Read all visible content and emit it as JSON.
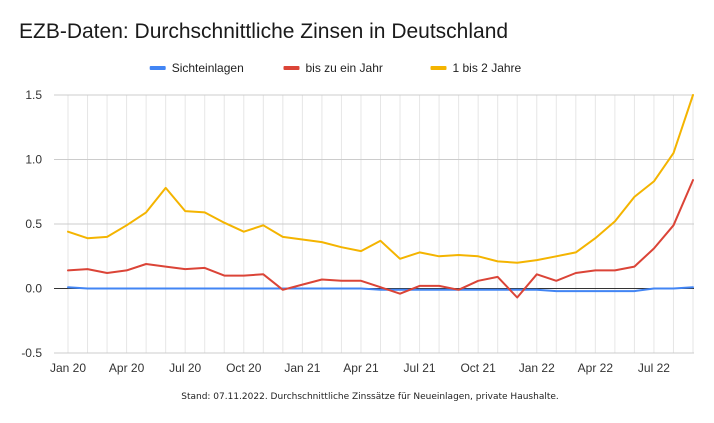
{
  "chart_data": {
    "type": "line",
    "title": "EZB-Daten: Durchschnittliche Zinsen in Deutschland",
    "footnote": "Stand: 07.11.2022. Durchschnittliche Zinssätze für Neueinlagen, private Haushalte.",
    "xlabel": "",
    "ylabel": "",
    "ylim": [
      -0.5,
      1.5
    ],
    "yticks": [
      "1.5",
      "1.0",
      "0.5",
      "0.0",
      "-0.5"
    ],
    "ytick_values": [
      1.5,
      1.0,
      0.5,
      0.0,
      -0.5
    ],
    "xtick_labels": [
      "Jan 20",
      "Apr 20",
      "Jul 20",
      "Oct 20",
      "Jan 21",
      "Apr 21",
      "Jul 21",
      "Oct 21",
      "Jan 22",
      "Apr 22",
      "Jul 22"
    ],
    "xtick_indices": [
      0,
      3,
      6,
      9,
      12,
      15,
      18,
      21,
      24,
      27,
      30
    ],
    "grid": true,
    "legend_position": "top-center",
    "x": [
      "Jan 20",
      "Feb 20",
      "Mar 20",
      "Apr 20",
      "May 20",
      "Jun 20",
      "Jul 20",
      "Aug 20",
      "Sep 20",
      "Oct 20",
      "Nov 20",
      "Dec 20",
      "Jan 21",
      "Feb 21",
      "Mar 21",
      "Apr 21",
      "May 21",
      "Jun 21",
      "Jul 21",
      "Aug 21",
      "Sep 21",
      "Oct 21",
      "Nov 21",
      "Dec 21",
      "Jan 22",
      "Feb 22",
      "Mar 22",
      "Apr 22",
      "May 22",
      "Jun 22",
      "Jul 22",
      "Aug 22",
      "Sep 22"
    ],
    "series": [
      {
        "name": "Sichteinlagen",
        "color": "#4285f4",
        "values": [
          0.01,
          0.0,
          0.0,
          0.0,
          0.0,
          0.0,
          0.0,
          0.0,
          0.0,
          0.0,
          0.0,
          0.0,
          0.0,
          0.0,
          0.0,
          0.0,
          -0.01,
          -0.01,
          -0.01,
          -0.01,
          -0.01,
          -0.01,
          -0.01,
          -0.01,
          -0.01,
          -0.02,
          -0.02,
          -0.02,
          -0.02,
          -0.02,
          0.0,
          0.0,
          0.01
        ]
      },
      {
        "name": "bis zu ein Jahr",
        "color": "#db4437",
        "values": [
          0.14,
          0.15,
          0.12,
          0.14,
          0.19,
          0.17,
          0.15,
          0.16,
          0.1,
          0.1,
          0.11,
          -0.01,
          0.03,
          0.07,
          0.06,
          0.06,
          0.01,
          -0.04,
          0.02,
          0.02,
          -0.01,
          0.06,
          0.09,
          -0.07,
          0.11,
          0.06,
          0.12,
          0.14,
          0.14,
          0.17,
          0.31,
          0.49,
          0.84
        ]
      },
      {
        "name": "1 bis 2 Jahre",
        "color": "#f4b400",
        "values": [
          0.44,
          0.39,
          0.4,
          0.49,
          0.59,
          0.78,
          0.6,
          0.59,
          0.51,
          0.44,
          0.49,
          0.4,
          0.38,
          0.36,
          0.32,
          0.29,
          0.37,
          0.23,
          0.28,
          0.25,
          0.26,
          0.25,
          0.21,
          0.2,
          0.22,
          0.25,
          0.28,
          0.39,
          0.52,
          0.71,
          0.83,
          1.05,
          1.5
        ]
      }
    ]
  }
}
